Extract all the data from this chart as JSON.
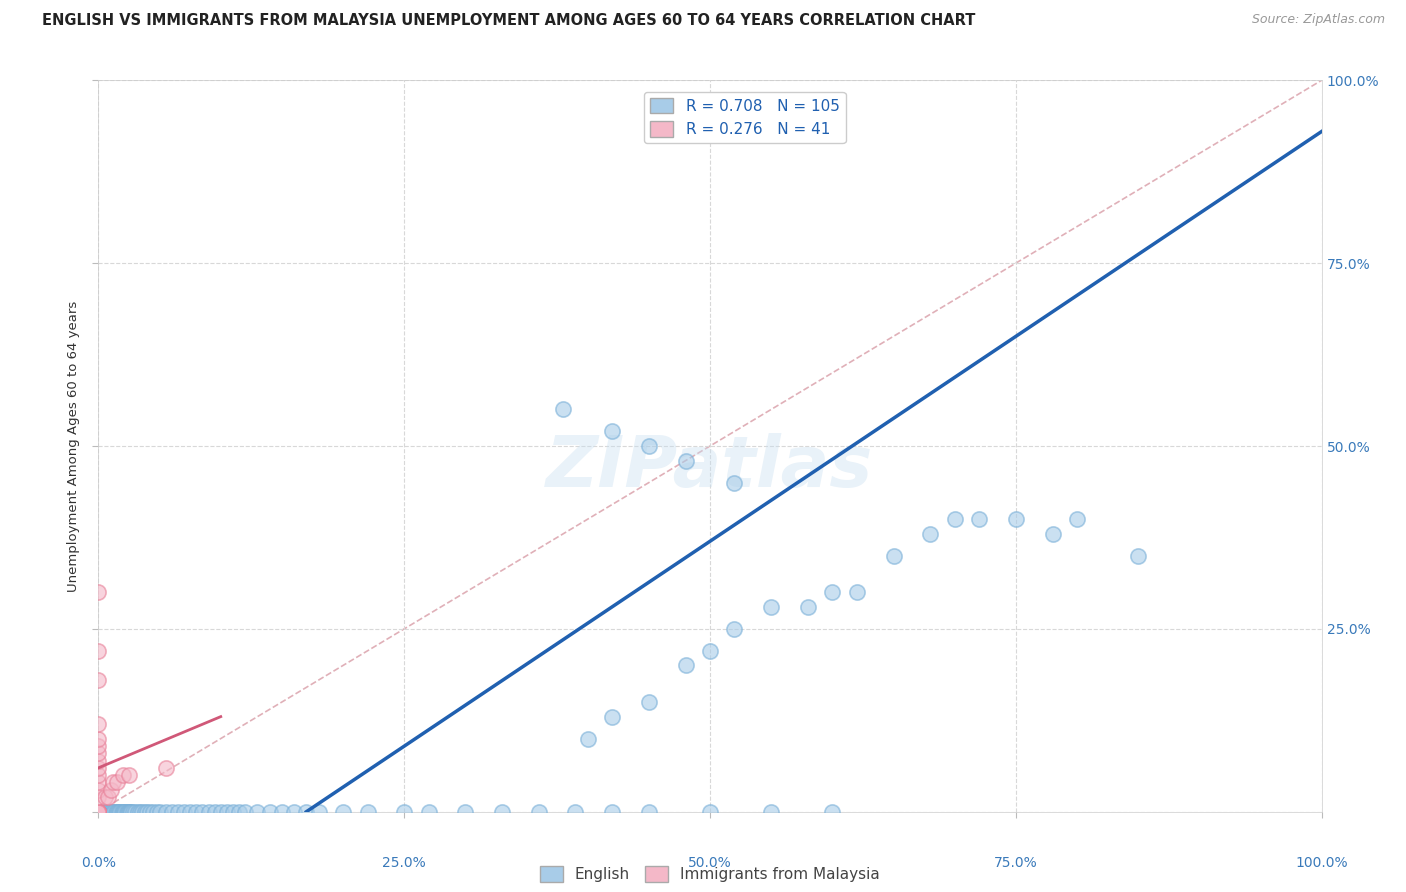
{
  "title": "ENGLISH VS IMMIGRANTS FROM MALAYSIA UNEMPLOYMENT AMONG AGES 60 TO 64 YEARS CORRELATION CHART",
  "source": "Source: ZipAtlas.com",
  "ylabel": "Unemployment Among Ages 60 to 64 years",
  "xlim": [
    0.0,
    1.0
  ],
  "ylim": [
    0.0,
    1.0
  ],
  "tick_values": [
    0.0,
    0.25,
    0.5,
    0.75,
    1.0
  ],
  "tick_pct_labels": [
    "0.0%",
    "25.0%",
    "50.0%",
    "75.0%",
    "100.0%"
  ],
  "right_ytick_values": [
    0.25,
    0.5,
    0.75,
    1.0
  ],
  "right_ytick_labels": [
    "25.0%",
    "50.0%",
    "75.0%",
    "100.0%"
  ],
  "english_R": 0.708,
  "english_N": 105,
  "malaysia_R": 0.276,
  "malaysia_N": 41,
  "english_color": "#a8cce8",
  "english_edge_color": "#7ab0d8",
  "malaysia_color": "#f4b8c8",
  "malaysia_edge_color": "#e88098",
  "english_line_color": "#2060b0",
  "malaysia_line_color": "#d05878",
  "diagonal_color": "#c8c8c8",
  "background_color": "#ffffff",
  "grid_color": "#d8d8d8",
  "watermark": "ZIPatlas",
  "english_scatter": [
    [
      0.0,
      0.0
    ],
    [
      0.0,
      0.0
    ],
    [
      0.0,
      0.0
    ],
    [
      0.0,
      0.0
    ],
    [
      0.0,
      0.0
    ],
    [
      0.0,
      0.0
    ],
    [
      0.0,
      0.0
    ],
    [
      0.0,
      0.0
    ],
    [
      0.0,
      0.0
    ],
    [
      0.0,
      0.0
    ],
    [
      0.0,
      0.0
    ],
    [
      0.0,
      0.0
    ],
    [
      0.0,
      0.0
    ],
    [
      0.0,
      0.0
    ],
    [
      0.0,
      0.0
    ],
    [
      0.005,
      0.0
    ],
    [
      0.005,
      0.0
    ],
    [
      0.007,
      0.0
    ],
    [
      0.008,
      0.0
    ],
    [
      0.009,
      0.0
    ],
    [
      0.01,
      0.0
    ],
    [
      0.01,
      0.0
    ],
    [
      0.012,
      0.0
    ],
    [
      0.013,
      0.0
    ],
    [
      0.014,
      0.0
    ],
    [
      0.015,
      0.0
    ],
    [
      0.016,
      0.0
    ],
    [
      0.017,
      0.0
    ],
    [
      0.018,
      0.0
    ],
    [
      0.019,
      0.0
    ],
    [
      0.02,
      0.0
    ],
    [
      0.021,
      0.0
    ],
    [
      0.022,
      0.0
    ],
    [
      0.023,
      0.0
    ],
    [
      0.024,
      0.0
    ],
    [
      0.025,
      0.0
    ],
    [
      0.026,
      0.0
    ],
    [
      0.027,
      0.0
    ],
    [
      0.028,
      0.0
    ],
    [
      0.03,
      0.0
    ],
    [
      0.032,
      0.0
    ],
    [
      0.034,
      0.0
    ],
    [
      0.036,
      0.0
    ],
    [
      0.038,
      0.0
    ],
    [
      0.04,
      0.0
    ],
    [
      0.042,
      0.0
    ],
    [
      0.045,
      0.0
    ],
    [
      0.048,
      0.0
    ],
    [
      0.05,
      0.0
    ],
    [
      0.055,
      0.0
    ],
    [
      0.06,
      0.0
    ],
    [
      0.065,
      0.0
    ],
    [
      0.07,
      0.0
    ],
    [
      0.075,
      0.0
    ],
    [
      0.08,
      0.0
    ],
    [
      0.085,
      0.0
    ],
    [
      0.09,
      0.0
    ],
    [
      0.095,
      0.0
    ],
    [
      0.1,
      0.0
    ],
    [
      0.105,
      0.0
    ],
    [
      0.11,
      0.0
    ],
    [
      0.115,
      0.0
    ],
    [
      0.12,
      0.0
    ],
    [
      0.13,
      0.0
    ],
    [
      0.14,
      0.0
    ],
    [
      0.15,
      0.0
    ],
    [
      0.16,
      0.0
    ],
    [
      0.17,
      0.0
    ],
    [
      0.18,
      0.0
    ],
    [
      0.2,
      0.0
    ],
    [
      0.22,
      0.0
    ],
    [
      0.25,
      0.0
    ],
    [
      0.27,
      0.0
    ],
    [
      0.3,
      0.0
    ],
    [
      0.33,
      0.0
    ],
    [
      0.36,
      0.0
    ],
    [
      0.39,
      0.0
    ],
    [
      0.42,
      0.0
    ],
    [
      0.45,
      0.0
    ],
    [
      0.5,
      0.0
    ],
    [
      0.55,
      0.0
    ],
    [
      0.6,
      0.0
    ],
    [
      0.4,
      0.1
    ],
    [
      0.42,
      0.13
    ],
    [
      0.45,
      0.15
    ],
    [
      0.48,
      0.2
    ],
    [
      0.5,
      0.22
    ],
    [
      0.52,
      0.25
    ],
    [
      0.55,
      0.28
    ],
    [
      0.58,
      0.28
    ],
    [
      0.6,
      0.3
    ],
    [
      0.62,
      0.3
    ],
    [
      0.65,
      0.35
    ],
    [
      0.68,
      0.38
    ],
    [
      0.7,
      0.4
    ],
    [
      0.72,
      0.4
    ],
    [
      0.75,
      0.4
    ],
    [
      0.78,
      0.38
    ],
    [
      0.8,
      0.4
    ],
    [
      0.85,
      0.35
    ],
    [
      0.38,
      0.55
    ],
    [
      0.42,
      0.52
    ],
    [
      0.45,
      0.5
    ],
    [
      0.48,
      0.48
    ],
    [
      0.52,
      0.45
    ]
  ],
  "malaysia_scatter": [
    [
      0.0,
      0.0
    ],
    [
      0.0,
      0.0
    ],
    [
      0.0,
      0.0
    ],
    [
      0.0,
      0.0
    ],
    [
      0.0,
      0.0
    ],
    [
      0.0,
      0.0
    ],
    [
      0.0,
      0.0
    ],
    [
      0.0,
      0.0
    ],
    [
      0.0,
      0.0
    ],
    [
      0.0,
      0.0
    ],
    [
      0.0,
      0.0
    ],
    [
      0.0,
      0.0
    ],
    [
      0.0,
      0.0
    ],
    [
      0.0,
      0.0
    ],
    [
      0.0,
      0.0
    ],
    [
      0.0,
      0.0
    ],
    [
      0.0,
      0.0
    ],
    [
      0.0,
      0.0
    ],
    [
      0.0,
      0.0
    ],
    [
      0.0,
      0.0
    ],
    [
      0.0,
      0.02
    ],
    [
      0.0,
      0.03
    ],
    [
      0.0,
      0.04
    ],
    [
      0.0,
      0.05
    ],
    [
      0.0,
      0.06
    ],
    [
      0.0,
      0.07
    ],
    [
      0.0,
      0.08
    ],
    [
      0.0,
      0.09
    ],
    [
      0.0,
      0.1
    ],
    [
      0.0,
      0.12
    ],
    [
      0.005,
      0.02
    ],
    [
      0.008,
      0.02
    ],
    [
      0.01,
      0.03
    ],
    [
      0.012,
      0.04
    ],
    [
      0.015,
      0.04
    ],
    [
      0.02,
      0.05
    ],
    [
      0.025,
      0.05
    ],
    [
      0.0,
      0.18
    ],
    [
      0.0,
      0.22
    ],
    [
      0.0,
      0.3
    ],
    [
      0.055,
      0.06
    ]
  ],
  "english_line": [
    [
      0.17,
      0.0
    ],
    [
      1.0,
      0.93
    ]
  ],
  "malaysia_line": [
    [
      0.0,
      0.06
    ],
    [
      0.1,
      0.13
    ]
  ]
}
